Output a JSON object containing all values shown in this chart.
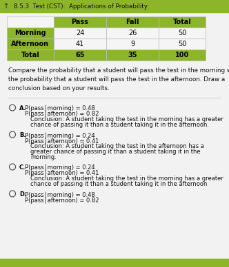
{
  "title": "8.5.3  Test (CST):  Applications of Probability",
  "table": {
    "col_headers": [
      "",
      "Pass",
      "Fall",
      "Total"
    ],
    "rows": [
      [
        "Morning",
        "24",
        "26",
        "50"
      ],
      [
        "Afternoon",
        "41",
        "9",
        "50"
      ],
      [
        "Total",
        "65",
        "35",
        "100"
      ]
    ],
    "header_bg": "#8db52a",
    "row_label_bg": "#8db52a",
    "cell_bg": "#f5f5f5",
    "border_color": "#bbbbbb",
    "text_color": "#000000"
  },
  "question": "Compare the probability that a student will pass the test in the morning with\nthe probability that a student will pass the test in the afternoon. Draw a\nconclusion based on your results.",
  "options": [
    {
      "label": "A.",
      "lines": [
        "P(pass│morning) = 0.48",
        "P(pass│afternoon) = 0.82",
        "Conclusion: A student taking the test in the morning has a greater",
        "chance of passing it than a student taking it in the afternoon."
      ]
    },
    {
      "label": "B.",
      "lines": [
        "P(pass│morning) = 0.24",
        "P(pass│afternoon) = 0.41",
        "Conclusion: A student taking the test in the afternoon has a",
        "greater chance of passing it than a student taking it in the",
        "morning."
      ]
    },
    {
      "label": "C.",
      "lines": [
        "P(pass│morning) = 0.24",
        "P(pass│afternoon) = 0.41",
        "Conclusion: A student taking the test in the morning has a greater",
        "chance of passing it than a student taking it in the afternoon"
      ]
    },
    {
      "label": "D.",
      "lines": [
        "P(pass│morning) = 0.48",
        "P(pass│afternoon) = 0.82"
      ]
    }
  ],
  "bg_color": "#d8d8d8",
  "content_bg": "#f0f0f0",
  "title_bar_color": "#8db52a",
  "bottom_bar_color": "#8db52a",
  "title_text_color": "#111111",
  "opt_font_size": 6.0,
  "question_font_size": 6.3,
  "title_font_size": 6.3
}
